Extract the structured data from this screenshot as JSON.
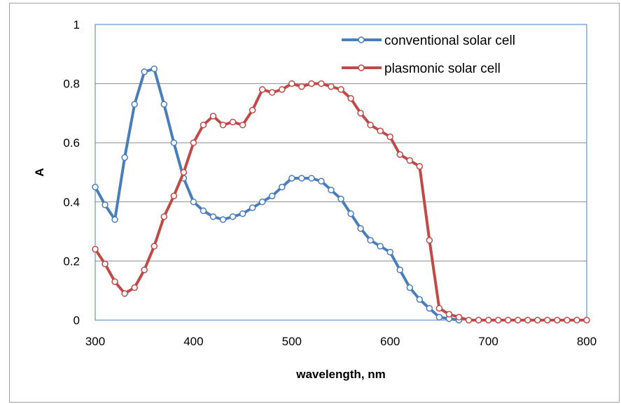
{
  "chart_data": {
    "type": "line",
    "title": "",
    "xlabel": "wavelength, nm",
    "ylabel": "A",
    "xlim": [
      300,
      800
    ],
    "ylim": [
      0,
      1
    ],
    "x_ticks": [
      "300",
      "400",
      "500",
      "600",
      "700",
      "800"
    ],
    "y_ticks": [
      "0",
      "0.2",
      "0.4",
      "0.6",
      "0.8",
      "1"
    ],
    "grid": "horizontal",
    "legend_position": "top-right",
    "x": [
      300,
      310,
      320,
      330,
      340,
      350,
      360,
      370,
      380,
      390,
      400,
      410,
      420,
      430,
      440,
      450,
      460,
      470,
      480,
      490,
      500,
      510,
      520,
      530,
      540,
      550,
      560,
      570,
      580,
      590,
      600,
      610,
      620,
      630,
      640,
      650,
      660,
      670,
      680,
      690,
      700,
      710,
      720,
      730,
      740,
      750,
      760,
      770,
      780,
      790,
      800
    ],
    "series": [
      {
        "name": "conventional solar cell",
        "color": "#4a7ebb",
        "values": [
          0.45,
          0.39,
          0.34,
          0.55,
          0.73,
          0.84,
          0.85,
          0.73,
          0.6,
          0.48,
          0.4,
          0.37,
          0.35,
          0.34,
          0.35,
          0.36,
          0.38,
          0.4,
          0.42,
          0.45,
          0.48,
          0.48,
          0.48,
          0.47,
          0.44,
          0.41,
          0.36,
          0.31,
          0.27,
          0.25,
          0.23,
          0.17,
          0.11,
          0.07,
          0.04,
          0.01,
          0.005,
          0.0,
          null,
          null,
          null,
          null,
          null,
          null,
          null,
          null,
          null,
          null,
          null,
          null,
          null
        ]
      },
      {
        "name": "plasmonic solar cell",
        "color": "#be4b48",
        "values": [
          0.24,
          0.19,
          0.13,
          0.09,
          0.11,
          0.17,
          0.25,
          0.35,
          0.42,
          0.5,
          0.6,
          0.66,
          0.69,
          0.66,
          0.67,
          0.66,
          0.71,
          0.78,
          0.77,
          0.78,
          0.8,
          0.79,
          0.8,
          0.8,
          0.79,
          0.78,
          0.75,
          0.7,
          0.66,
          0.64,
          0.62,
          0.56,
          0.54,
          0.52,
          0.27,
          0.04,
          0.02,
          0.01,
          0.0,
          0.0,
          0.0,
          0.0,
          0.0,
          0.0,
          0.0,
          0.0,
          0.0,
          0.0,
          0.0,
          0.0,
          0.0
        ]
      }
    ]
  }
}
